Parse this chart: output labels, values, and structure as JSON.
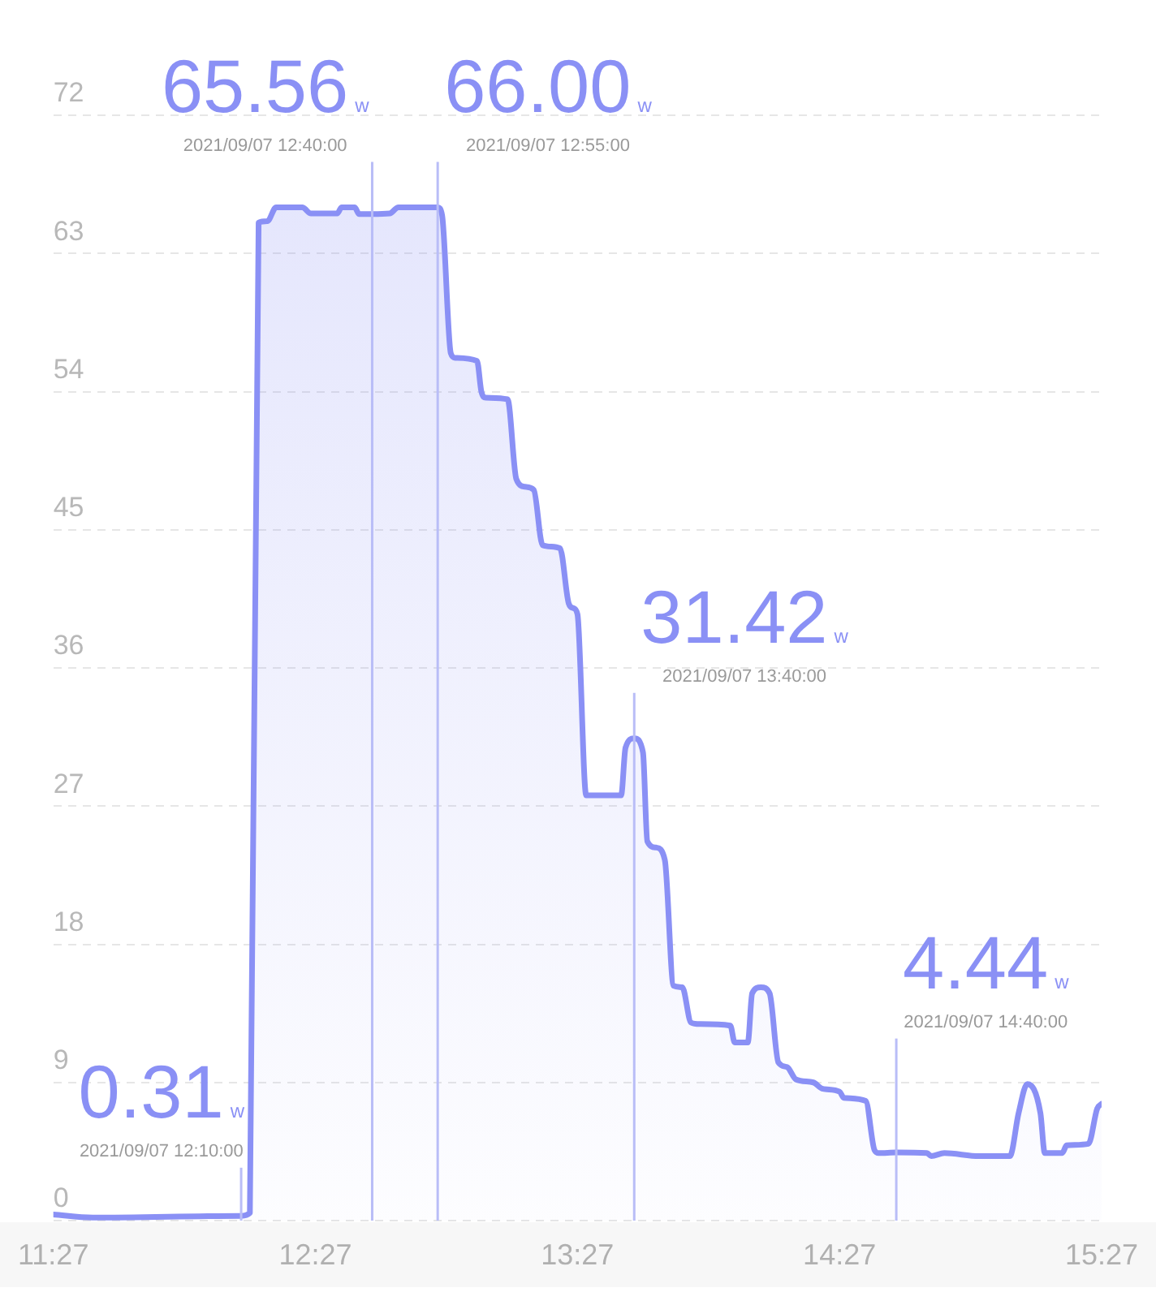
{
  "chart_data": {
    "type": "area",
    "color": "#8a90f5",
    "x": [
      "2021-09-07T11:27",
      "2021-09-07T11:36",
      "2021-09-07T12:10",
      "2021-09-07T12:12",
      "2021-09-07T12:14",
      "2021-09-07T12:16",
      "2021-09-07T12:18",
      "2021-09-07T12:24",
      "2021-09-07T12:26",
      "2021-09-07T12:32",
      "2021-09-07T12:33",
      "2021-09-07T12:36",
      "2021-09-07T12:37",
      "2021-09-07T12:40",
      "2021-09-07T12:44",
      "2021-09-07T12:46",
      "2021-09-07T12:55",
      "2021-09-07T12:56",
      "2021-09-07T12:58",
      "2021-09-07T12:59",
      "2021-09-07T13:04",
      "2021-09-07T13:05",
      "2021-09-07T13:06",
      "2021-09-07T13:11",
      "2021-09-07T13:13",
      "2021-09-07T13:15",
      "2021-09-07T13:17",
      "2021-09-07T13:19",
      "2021-09-07T13:23",
      "2021-09-07T13:25",
      "2021-09-07T13:26",
      "2021-09-07T13:27",
      "2021-09-07T13:29",
      "2021-09-07T13:37",
      "2021-09-07T13:38",
      "2021-09-07T13:40",
      "2021-09-07T13:42",
      "2021-09-07T13:43",
      "2021-09-07T13:45",
      "2021-09-07T13:47",
      "2021-09-07T13:49",
      "2021-09-07T13:51",
      "2021-09-07T13:53",
      "2021-09-07T13:55",
      "2021-09-07T14:02",
      "2021-09-07T14:03",
      "2021-09-07T14:06",
      "2021-09-07T14:07",
      "2021-09-07T14:09",
      "2021-09-07T14:11",
      "2021-09-07T14:13",
      "2021-09-07T14:15",
      "2021-09-07T14:17",
      "2021-09-07T14:21",
      "2021-09-07T14:23",
      "2021-09-07T14:27",
      "2021-09-07T14:28",
      "2021-09-07T14:33",
      "2021-09-07T14:35",
      "2021-09-07T14:36",
      "2021-09-07T14:40",
      "2021-09-07T14:47",
      "2021-09-07T14:48",
      "2021-09-07T14:51",
      "2021-09-07T14:59",
      "2021-09-07T15:06",
      "2021-09-07T15:08",
      "2021-09-07T15:10",
      "2021-09-07T15:13",
      "2021-09-07T15:14",
      "2021-09-07T15:18",
      "2021-09-07T15:19",
      "2021-09-07T15:24",
      "2021-09-07T15:26",
      "2021-09-07T15:27"
    ],
    "values": [
      0.4,
      0.2,
      0.31,
      0.5,
      65.0,
      65.1,
      66.0,
      66.0,
      65.6,
      65.6,
      66.0,
      66.0,
      65.56,
      65.56,
      65.6,
      66.0,
      66.0,
      65.5,
      56.5,
      56.2,
      56.0,
      54.0,
      53.6,
      53.5,
      48.3,
      47.8,
      47.6,
      44.0,
      43.8,
      40.2,
      39.9,
      39.5,
      27.7,
      27.7,
      30.8,
      31.42,
      30.5,
      24.7,
      24.3,
      23.5,
      15.3,
      15.2,
      12.9,
      12.8,
      12.7,
      11.6,
      11.6,
      14.8,
      15.2,
      14.8,
      10.3,
      10.0,
      9.2,
      9.0,
      8.6,
      8.4,
      8.0,
      7.8,
      4.6,
      4.4,
      4.44,
      4.4,
      4.2,
      4.4,
      4.2,
      4.2,
      7.0,
      8.9,
      7.0,
      4.4,
      4.4,
      4.9,
      5.0,
      7.3,
      7.6
    ],
    "xlim": [
      "2021-09-07T11:27",
      "2021-09-07T15:27"
    ],
    "xticks": [
      {
        "value": "2021-09-07T11:27",
        "label": "11:27"
      },
      {
        "value": "2021-09-07T12:27",
        "label": "12:27"
      },
      {
        "value": "2021-09-07T13:27",
        "label": "13:27"
      },
      {
        "value": "2021-09-07T14:27",
        "label": "14:27"
      },
      {
        "value": "2021-09-07T15:27",
        "label": "15:27"
      }
    ],
    "ylim": [
      0,
      72
    ],
    "yticks": [
      0,
      9,
      18,
      27,
      36,
      45,
      54,
      63,
      72
    ],
    "grid": "y",
    "marker": "none",
    "ref_lines": [
      {
        "axis": "x",
        "value": "2021-09-07T12:10",
        "label": "2021/09/07 12:10:00",
        "color": "#b9bdf7"
      },
      {
        "axis": "x",
        "value": "2021-09-07T12:40",
        "label": "2021/09/07 12:40:00",
        "color": "#b9bdf7"
      },
      {
        "axis": "x",
        "value": "2021-09-07T12:55",
        "label": "2021/09/07 12:55:00",
        "color": "#b9bdf7"
      },
      {
        "axis": "x",
        "value": "2021-09-07T13:40",
        "label": "2021/09/07 13:40:00",
        "color": "#b9bdf7"
      },
      {
        "axis": "x",
        "value": "2021-09-07T14:40",
        "label": "2021/09/07 14:40:00",
        "color": "#b9bdf7"
      }
    ],
    "annotations": [
      {
        "text": "0.31",
        "x": "2021-09-07T12:10",
        "y": 0.31
      },
      "w",
      {
        "text": "65.56",
        "x": "2021-09-07T12:40",
        "y": 65.56
      },
      "w",
      {
        "text": "66.00",
        "x": "2021-09-07T12:55",
        "y": 66.0
      },
      "w",
      {
        "text": "31.42",
        "x": "2021-09-07T13:40",
        "y": 31.42
      },
      "w",
      {
        "text": "4.44",
        "x": "2021-09-07T14:40",
        "y": 4.44
      },
      "w"
    ]
  }
}
